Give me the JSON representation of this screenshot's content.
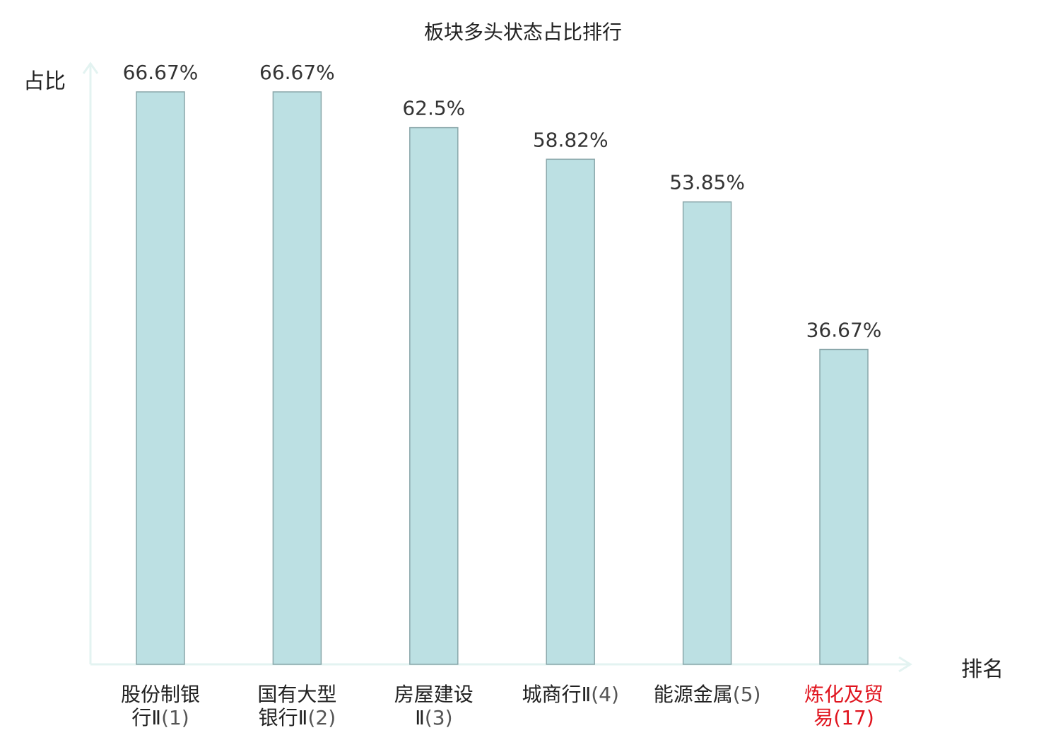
{
  "chart_data": {
    "type": "bar",
    "title": "板块多头状态占比排行",
    "xlabel": "排名",
    "ylabel": "占比",
    "ylim": [
      0,
      70
    ],
    "grid": false,
    "categories": [
      {
        "name": "股份制银行Ⅱ",
        "rank": "(1)",
        "line1": "股份制银",
        "line2": "行Ⅱ",
        "highlight": false
      },
      {
        "name": "国有大型银行Ⅱ",
        "rank": "(2)",
        "line1": "国有大型",
        "line2": "银行Ⅱ",
        "highlight": false
      },
      {
        "name": "房屋建设Ⅱ",
        "rank": "(3)",
        "line1": "房屋建设",
        "line2": "Ⅱ",
        "highlight": false
      },
      {
        "name": "城商行Ⅱ",
        "rank": "(4)",
        "line1": "城商行Ⅱ",
        "line2": "",
        "highlight": false
      },
      {
        "name": "能源金属",
        "rank": "(5)",
        "line1": "能源金属",
        "line2": "",
        "highlight": false
      },
      {
        "name": "炼化及贸易",
        "rank": "(17)",
        "line1": "炼化及贸",
        "line2": "易",
        "highlight": true
      }
    ],
    "values": [
      66.67,
      66.67,
      62.5,
      58.82,
      53.85,
      36.67
    ],
    "value_labels": [
      "66.67%",
      "66.67%",
      "62.5%",
      "58.82%",
      "53.85%",
      "36.67%"
    ],
    "colors": {
      "bar_fill": "#bce0e3",
      "bar_stroke": "#8aa7aa",
      "axis": "#e3f3f1",
      "highlight_text": "#e0141e",
      "normal_text": "#222222"
    }
  }
}
